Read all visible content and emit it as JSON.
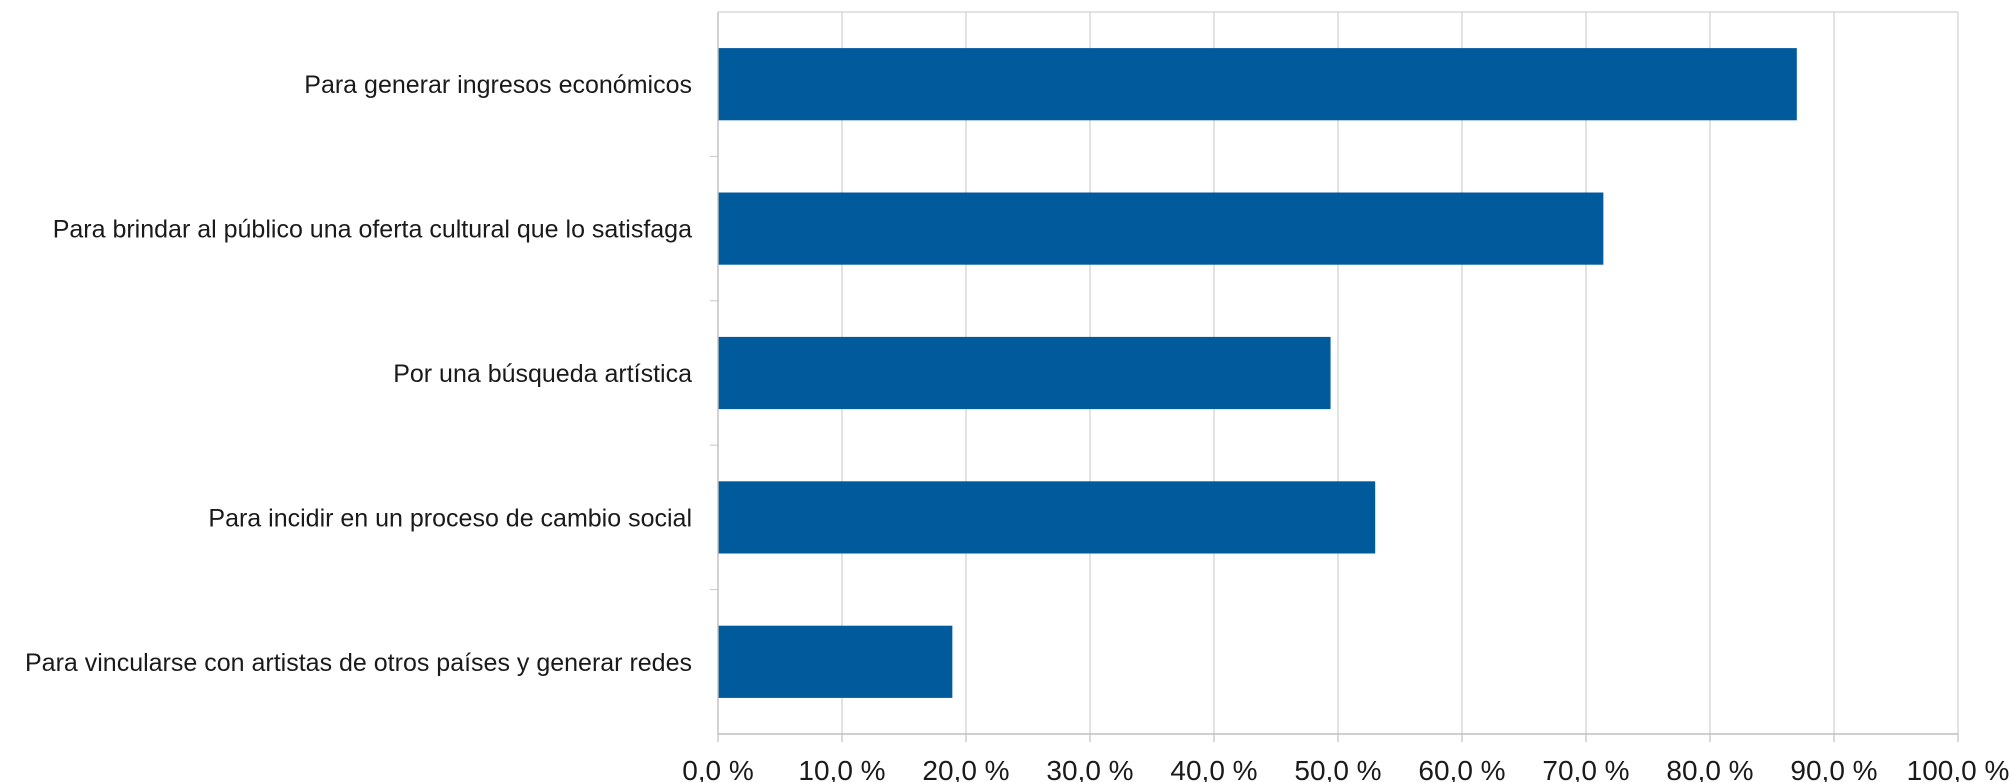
{
  "chart_data": {
    "type": "bar",
    "orientation": "horizontal",
    "categories": [
      "Para generar ingresos económicos",
      "Para brindar al público una oferta cultural que lo satisfaga",
      "Por una búsqueda artística",
      "Para incidir en un proceso de cambio social",
      "Para vincularse con artistas de otros países y generar redes"
    ],
    "values": [
      87.0,
      71.4,
      49.4,
      53.0,
      18.9
    ],
    "xlim": [
      0,
      100
    ],
    "x_ticks": [
      0,
      10,
      20,
      30,
      40,
      50,
      60,
      70,
      80,
      90,
      100
    ],
    "x_tick_labels": [
      "0,0 %",
      "10,0 %",
      "20,0 %",
      "30,0 %",
      "40,0 %",
      "50,0 %",
      "60,0 %",
      "70,0 %",
      "80,0 %",
      "90,0 %",
      "100,0 %"
    ],
    "title": "",
    "xlabel": "",
    "ylabel": "",
    "grid": "vertical",
    "legend": "none",
    "bar_color": "#005a9c",
    "grid_color": "#d0d0d0"
  }
}
